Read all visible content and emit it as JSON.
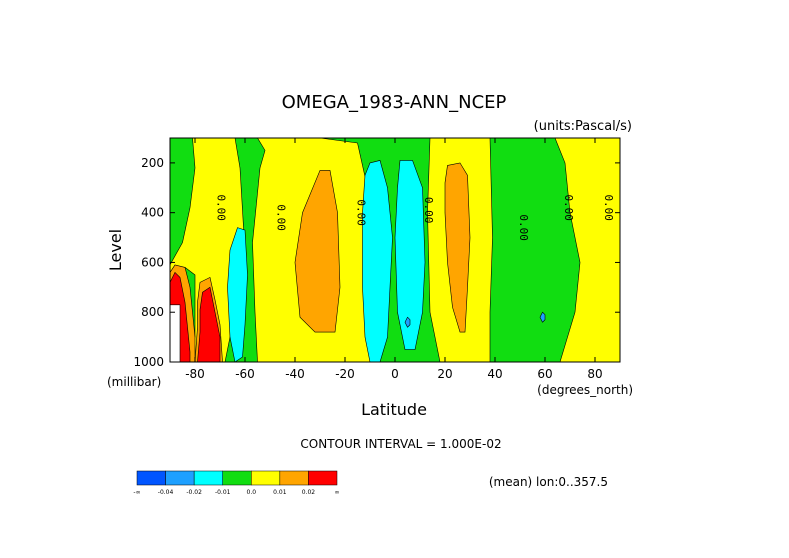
{
  "chart_data": {
    "type": "contour",
    "title": "OMEGA_1983-ANN_NCEP",
    "units_label": "(units:Pascal/s)",
    "xlabel": "Latitude",
    "ylabel": "Level",
    "x_units_label": "(degrees_north)",
    "y_units_label": "(millibar)",
    "xlim": [
      -90,
      90
    ],
    "ylim": [
      1000,
      100
    ],
    "x_ticks": [
      -80,
      -60,
      -40,
      -20,
      0,
      20,
      40,
      60,
      80
    ],
    "y_ticks": [
      200,
      400,
      600,
      800,
      1000
    ],
    "contour_interval_text": "CONTOUR INTERVAL = 1.000E-02",
    "footer_text": "(mean) lon:0..357.5",
    "contour_zero_label": "0.00",
    "zero_label_positions": [
      {
        "lat": -71,
        "level": 380
      },
      {
        "lat": -47,
        "level": 420
      },
      {
        "lat": -15,
        "level": 400
      },
      {
        "lat": 12,
        "level": 390
      },
      {
        "lat": 50,
        "level": 460
      },
      {
        "lat": 68,
        "level": 380
      },
      {
        "lat": 84,
        "level": 380
      }
    ],
    "colorbar": {
      "colors": [
        "#0055ff",
        "#1ea0ff",
        "#00ffff",
        "#11dd11",
        "#ffff00",
        "#ffa500",
        "#ff0000"
      ],
      "labels": [
        "-∞",
        "-0.04",
        "-0.02",
        "-0.01",
        "0.0",
        "0.01",
        "0.02",
        "∞"
      ]
    },
    "regions": [
      {
        "color": "#11dd11",
        "points": [
          [
            -90,
            100
          ],
          [
            90,
            100
          ],
          [
            90,
            1000
          ],
          [
            -90,
            1000
          ]
        ]
      },
      {
        "color": "#ffff00",
        "points": [
          [
            -81,
            100
          ],
          [
            -64,
            100
          ],
          [
            -62,
            220
          ],
          [
            -60,
            560
          ],
          [
            -62,
            760
          ],
          [
            -66,
            900
          ],
          [
            -68,
            1000
          ],
          [
            -90,
            1000
          ],
          [
            -90,
            610
          ],
          [
            -85,
            520
          ],
          [
            -82,
            380
          ],
          [
            -80,
            220
          ]
        ]
      },
      {
        "color": "#ffff00",
        "points": [
          [
            -55,
            100
          ],
          [
            -30,
            100
          ],
          [
            -15,
            120
          ],
          [
            -11,
            300
          ],
          [
            -10,
            700
          ],
          [
            -7,
            1000
          ],
          [
            -55,
            1000
          ],
          [
            -56,
            800
          ],
          [
            -57,
            520
          ],
          [
            -54,
            220
          ],
          [
            -52,
            150
          ]
        ]
      },
      {
        "color": "#ffff00",
        "points": [
          [
            14,
            100
          ],
          [
            38,
            100
          ],
          [
            39,
            500
          ],
          [
            38,
            800
          ],
          [
            38,
            1000
          ],
          [
            18,
            1000
          ],
          [
            14,
            800
          ],
          [
            13,
            400
          ]
        ]
      },
      {
        "color": "#ffff00",
        "points": [
          [
            64,
            100
          ],
          [
            90,
            100
          ],
          [
            90,
            1000
          ],
          [
            66,
            1000
          ],
          [
            72,
            800
          ],
          [
            74,
            600
          ],
          [
            70,
            400
          ],
          [
            68,
            200
          ]
        ]
      },
      {
        "color": "#ffa500",
        "points": [
          [
            -30,
            230
          ],
          [
            -26,
            230
          ],
          [
            -23,
            400
          ],
          [
            -22,
            700
          ],
          [
            -24,
            880
          ],
          [
            -32,
            880
          ],
          [
            -38,
            820
          ],
          [
            -40,
            600
          ],
          [
            -37,
            400
          ]
        ]
      },
      {
        "color": "#ffa500",
        "points": [
          [
            21,
            210
          ],
          [
            26,
            200
          ],
          [
            29,
            250
          ],
          [
            30,
            500
          ],
          [
            29,
            700
          ],
          [
            28,
            880
          ],
          [
            26,
            880
          ],
          [
            23,
            780
          ],
          [
            21,
            600
          ],
          [
            20,
            400
          ],
          [
            20,
            280
          ]
        ]
      },
      {
        "color": "#00ffff",
        "points": [
          [
            -10,
            200
          ],
          [
            -6,
            190
          ],
          [
            -3,
            300
          ],
          [
            -1,
            500
          ],
          [
            -2,
            700
          ],
          [
            -3,
            900
          ],
          [
            -6,
            1000
          ],
          [
            -10,
            1000
          ],
          [
            -12,
            900
          ],
          [
            -13,
            700
          ],
          [
            -13,
            400
          ],
          [
            -12,
            250
          ]
        ]
      },
      {
        "color": "#00ffff",
        "points": [
          [
            2,
            190
          ],
          [
            7,
            190
          ],
          [
            11,
            300
          ],
          [
            12,
            600
          ],
          [
            11,
            800
          ],
          [
            8,
            950
          ],
          [
            4,
            950
          ],
          [
            1,
            800
          ],
          [
            0,
            500
          ],
          [
            1,
            300
          ]
        ]
      },
      {
        "color": "#00ffff",
        "points": [
          [
            -63,
            460
          ],
          [
            -60,
            470
          ],
          [
            -59,
            650
          ],
          [
            -60,
            850
          ],
          [
            -61,
            980
          ],
          [
            -64,
            1000
          ],
          [
            -66,
            900
          ],
          [
            -67,
            700
          ],
          [
            -66,
            550
          ]
        ]
      },
      {
        "color": "#1ea0ff",
        "points": [
          [
            5,
            820
          ],
          [
            6,
            830
          ],
          [
            6,
            850
          ],
          [
            5,
            860
          ],
          [
            4,
            840
          ]
        ]
      },
      {
        "color": "#1ea0ff",
        "points": [
          [
            59,
            800
          ],
          [
            60,
            810
          ],
          [
            60,
            830
          ],
          [
            59,
            840
          ],
          [
            58,
            820
          ]
        ]
      },
      {
        "color": "#11dd11",
        "points": [
          [
            -84,
            620
          ],
          [
            -80,
            650
          ],
          [
            -80,
            900
          ],
          [
            -84,
            950
          ],
          [
            -86,
            850
          ]
        ]
      },
      {
        "color": "#ffa500",
        "points": [
          [
            -88,
            610
          ],
          [
            -84,
            620
          ],
          [
            -82,
            700
          ],
          [
            -81,
            800
          ],
          [
            -80,
            900
          ],
          [
            -80,
            1000
          ],
          [
            -88,
            1000
          ],
          [
            -90,
            900
          ],
          [
            -90,
            640
          ]
        ]
      },
      {
        "color": "#ffa500",
        "points": [
          [
            -78,
            680
          ],
          [
            -74,
            660
          ],
          [
            -72,
            750
          ],
          [
            -70,
            850
          ],
          [
            -69,
            1000
          ],
          [
            -80,
            1000
          ],
          [
            -79,
            860
          ],
          [
            -79,
            760
          ]
        ]
      },
      {
        "color": "#ff0000",
        "points": [
          [
            -88,
            640
          ],
          [
            -86,
            660
          ],
          [
            -84,
            760
          ],
          [
            -83,
            860
          ],
          [
            -82,
            960
          ],
          [
            -82,
            1000
          ],
          [
            -88,
            1000
          ],
          [
            -90,
            900
          ],
          [
            -90,
            680
          ]
        ]
      },
      {
        "color": "#ff0000",
        "points": [
          [
            -77,
            720
          ],
          [
            -74,
            700
          ],
          [
            -72,
            800
          ],
          [
            -70,
            900
          ],
          [
            -70,
            1000
          ],
          [
            -79,
            1000
          ],
          [
            -78,
            880
          ],
          [
            -78,
            790
          ]
        ]
      },
      {
        "color": "#ffffff",
        "points": [
          [
            -90,
            770
          ],
          [
            -86,
            770
          ],
          [
            -86,
            1000
          ],
          [
            -90,
            1000
          ]
        ]
      }
    ]
  }
}
